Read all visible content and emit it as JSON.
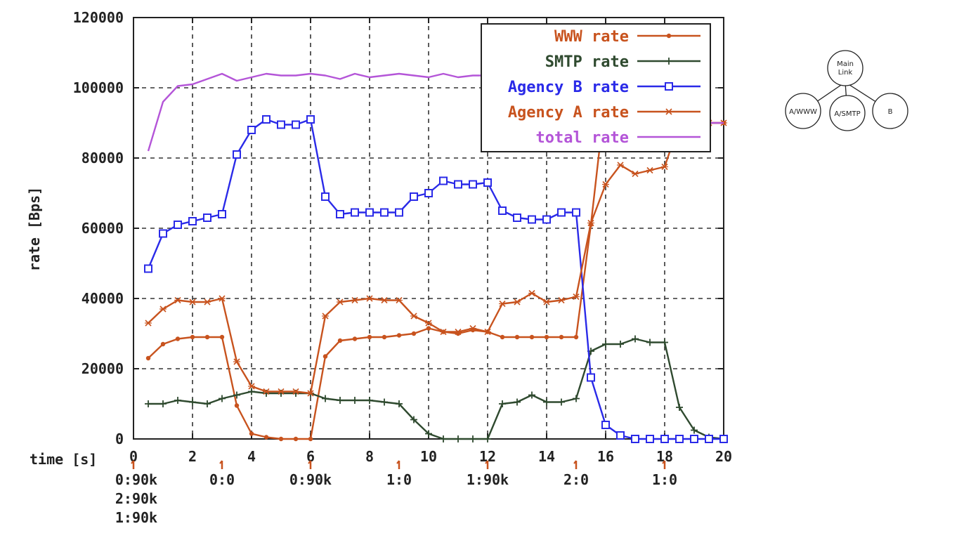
{
  "chart_data": {
    "type": "line",
    "xlabel": "time [s]",
    "ylabel": "rate [Bps]",
    "xlim": [
      0,
      20
    ],
    "ylim": [
      0,
      120000
    ],
    "x_ticks": [
      "0",
      "2",
      "4",
      "6",
      "8",
      "10",
      "12",
      "14",
      "16",
      "18",
      "20"
    ],
    "y_ticks": [
      "0",
      "20000",
      "40000",
      "60000",
      "80000",
      "100000",
      "120000"
    ],
    "x_tick_values": [
      0,
      2,
      4,
      6,
      8,
      10,
      12,
      14,
      16,
      18,
      20
    ],
    "y_tick_values": [
      0,
      20000,
      40000,
      60000,
      80000,
      100000,
      120000
    ],
    "grid": true,
    "legend_position": "top-right",
    "series": [
      {
        "name": "WWW rate",
        "color": "#c8531e",
        "marker": "dot",
        "x": [
          0.5,
          1,
          1.5,
          2,
          2.5,
          3,
          3.5,
          4,
          4.5,
          5,
          5.5,
          6,
          6.5,
          7,
          7.5,
          8,
          8.5,
          9,
          9.5,
          10,
          10.5,
          11,
          11.5,
          12,
          12.5,
          13,
          13.5,
          14,
          14.5,
          15,
          15.5,
          16,
          16.5,
          17,
          17.5,
          18,
          18.5,
          19,
          19.5,
          20
        ],
        "y": [
          23000,
          27000,
          28500,
          29000,
          29000,
          29000,
          9500,
          1500,
          500,
          0,
          0,
          0,
          23500,
          28000,
          28500,
          29000,
          29000,
          29500,
          30000,
          31500,
          30500,
          30000,
          31000,
          30500,
          29000,
          29000,
          29000,
          29000,
          29000,
          29000,
          61000,
          98000,
          104500,
          104000,
          104000,
          104500,
          99000,
          89000,
          90000,
          90000
        ]
      },
      {
        "name": "SMTP rate",
        "color": "#2f4a2f",
        "marker": "plus",
        "x": [
          0.5,
          1,
          1.5,
          2,
          2.5,
          3,
          3.5,
          4,
          4.5,
          5,
          5.5,
          6,
          6.5,
          7,
          7.5,
          8,
          8.5,
          9,
          9.5,
          10,
          10.5,
          11,
          11.5,
          12,
          12.5,
          13,
          13.5,
          14,
          14.5,
          15,
          15.5,
          16,
          16.5,
          17,
          17.5,
          18,
          18.5,
          19,
          19.5,
          20
        ],
        "y": [
          10000,
          10000,
          11000,
          10500,
          10000,
          11500,
          12500,
          13500,
          13000,
          13000,
          13000,
          13000,
          11500,
          11000,
          11000,
          11000,
          10500,
          10000,
          5500,
          1500,
          0,
          0,
          0,
          0,
          10000,
          10500,
          12500,
          10500,
          10500,
          11500,
          25000,
          27000,
          27000,
          28500,
          27500,
          27500,
          9000,
          2500,
          500,
          0
        ]
      },
      {
        "name": "Agency B rate",
        "color": "#2a2ae8",
        "marker": "square",
        "x": [
          0.5,
          1,
          1.5,
          2,
          2.5,
          3,
          3.5,
          4,
          4.5,
          5,
          5.5,
          6,
          6.5,
          7,
          7.5,
          8,
          8.5,
          9,
          9.5,
          10,
          10.5,
          11,
          11.5,
          12,
          12.5,
          13,
          13.5,
          14,
          14.5,
          15,
          15.5,
          16,
          16.5,
          17,
          17.5,
          18,
          18.5,
          19,
          19.5,
          20
        ],
        "y": [
          48500,
          58500,
          61000,
          62000,
          63000,
          64000,
          81000,
          88000,
          91000,
          89500,
          89500,
          91000,
          69000,
          64000,
          64500,
          64500,
          64500,
          64500,
          69000,
          70000,
          73500,
          72500,
          72500,
          73000,
          65000,
          63000,
          62500,
          62500,
          64500,
          64500,
          17500,
          4000,
          1000,
          0,
          0,
          0,
          0,
          0,
          0,
          0
        ]
      },
      {
        "name": "Agency A rate",
        "color": "#c8531e",
        "marker": "cross",
        "x": [
          0.5,
          1,
          1.5,
          2,
          2.5,
          3,
          3.5,
          4,
          4.5,
          5,
          5.5,
          6,
          6.5,
          7,
          7.5,
          8,
          8.5,
          9,
          9.5,
          10,
          10.5,
          11,
          11.5,
          12,
          12.5,
          13,
          13.5,
          14,
          14.5,
          15,
          15.5,
          16,
          16.5,
          17,
          17.5,
          18,
          18.5,
          19,
          19.5,
          20
        ],
        "y": [
          33000,
          37000,
          39500,
          39000,
          39000,
          40000,
          22000,
          15000,
          13500,
          13500,
          13500,
          13000,
          35000,
          39000,
          39500,
          40000,
          39500,
          39500,
          35000,
          33000,
          30500,
          30500,
          31500,
          30500,
          38500,
          39000,
          41500,
          39000,
          39500,
          40500,
          61500,
          72500,
          78000,
          75500,
          76500,
          77500,
          90000,
          90000,
          90000,
          90000
        ]
      },
      {
        "name": "total rate",
        "color": "#b455d8",
        "marker": "none",
        "x": [
          0.5,
          1,
          1.5,
          2,
          2.5,
          3,
          3.5,
          4,
          4.5,
          5,
          5.5,
          6,
          6.5,
          7,
          7.5,
          8,
          8.5,
          9,
          9.5,
          10,
          10.5,
          11,
          11.5,
          12,
          12.5,
          13,
          13.5,
          14,
          14.5,
          15,
          15.5,
          16,
          16.5,
          17,
          17.5,
          18,
          18.5,
          19,
          19.5,
          20
        ],
        "y": [
          82000,
          96000,
          100500,
          101000,
          102500,
          104000,
          102000,
          103000,
          104000,
          103500,
          103500,
          104000,
          103500,
          102500,
          104000,
          103000,
          103500,
          104000,
          103500,
          103000,
          104000,
          103000,
          103500,
          103500,
          104000,
          102500,
          104000,
          103000,
          103500,
          104500,
          104000,
          103500,
          104500,
          104000,
          102500,
          104500,
          99000,
          90000,
          90000,
          90000
        ]
      }
    ],
    "event_markers": [
      {
        "x": 0,
        "labels": [
          "0:90k",
          "2:90k",
          "1:90k"
        ]
      },
      {
        "x": 3,
        "labels": [
          "0:0"
        ]
      },
      {
        "x": 6,
        "labels": [
          "0:90k"
        ]
      },
      {
        "x": 9,
        "labels": [
          "1:0"
        ]
      },
      {
        "x": 12,
        "labels": [
          "1:90k"
        ]
      },
      {
        "x": 15,
        "labels": [
          "2:0"
        ]
      },
      {
        "x": 18,
        "labels": [
          "1:0"
        ]
      }
    ]
  },
  "tree_diagram": {
    "root": "Main Link",
    "children": [
      "A/WWW",
      "A/SMTP",
      "B"
    ]
  }
}
